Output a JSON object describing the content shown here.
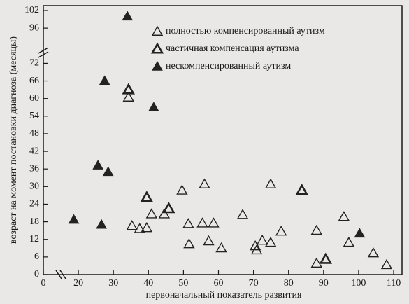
{
  "chart_data": {
    "type": "scatter",
    "x_label": "первоначальный показатель развития",
    "y_label": "возраст на момент постановки диагноза (месяцы)",
    "xlim": [
      0,
      110
    ],
    "xticks": [
      0,
      20,
      30,
      40,
      50,
      60,
      70,
      80,
      90,
      100,
      110
    ],
    "ylim": [
      0,
      102
    ],
    "yticks": [
      0,
      6,
      12,
      18,
      24,
      30,
      36,
      42,
      48,
      54,
      60,
      66,
      72,
      96,
      102
    ],
    "legend": "top-right",
    "series": [
      {
        "name": "полностью компенсированный аутизм",
        "color": "#222222",
        "marker": "open",
        "x": [
          34.3,
          35.3,
          37.5,
          39.5,
          40.9,
          44.5,
          49.6,
          51.4,
          51.6,
          56,
          55.4,
          57.2,
          58.6,
          60.8,
          66.9,
          70.5,
          70.9,
          72.5,
          74.9,
          74.9,
          77.9,
          88,
          88,
          95.8,
          97.2,
          104.2,
          108
        ],
        "values": [
          60.4,
          16.6,
          15.6,
          15.9,
          20.6,
          20.6,
          28.7,
          17.3,
          10.4,
          30.8,
          17.5,
          11.4,
          17.5,
          9,
          20.4,
          9.7,
          8.3,
          11.6,
          10.9,
          30.8,
          14.7,
          15,
          3.8,
          19.7,
          10.9,
          7.3,
          3.3
        ]
      },
      {
        "name": "частичная компенсация аутизма",
        "color": "#222222",
        "marker": "thick",
        "x": [
          34.3,
          39.5,
          45.8,
          83.8,
          90.6
        ],
        "values": [
          63,
          26.3,
          22.5,
          28.7,
          5.2
        ]
      },
      {
        "name": "нескомпенсированный аутизм",
        "color": "#222222",
        "marker": "filled",
        "x": [
          17.4,
          25.6,
          26.6,
          27.5,
          28.5,
          34,
          41.5,
          100.3
        ],
        "values": [
          18.7,
          37.2,
          17,
          66,
          35,
          100,
          57,
          14
        ]
      }
    ]
  }
}
